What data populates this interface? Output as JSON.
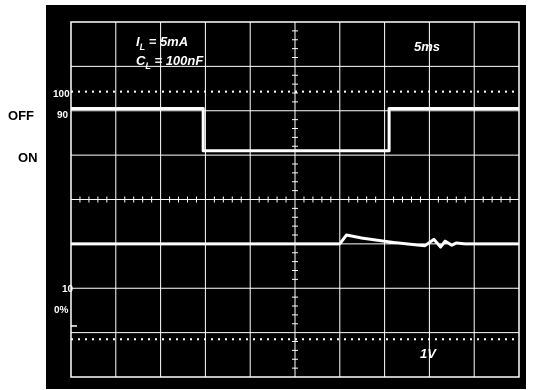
{
  "chart_data": {
    "type": "line",
    "title": "",
    "xlabel": "",
    "ylabel": "",
    "timebase": "5ms",
    "vertical_scale": "1V",
    "conditions": {
      "il": {
        "main": "I",
        "sub": "L",
        "rest": " = 5mA"
      },
      "cl": {
        "main": "C",
        "sub": "L",
        "rest": " = 100nF"
      }
    },
    "level_marks": {
      "top": "100",
      "upper": "90",
      "lower": "10",
      "bottom": "0%"
    },
    "side_labels": {
      "off": "OFF",
      "on": "ON"
    },
    "grid": true,
    "x_divisions": 10,
    "y_divisions": 8,
    "series": [
      {
        "channel": "upper",
        "x": [
          0,
          2.95,
          2.95,
          7.1,
          7.1,
          10
        ],
        "y": [
          6.05,
          6.05,
          5.1,
          5.1,
          6.05,
          6.05
        ]
      },
      {
        "channel": "lower",
        "x": [
          0,
          6.0,
          6.15,
          6.5,
          7.2,
          7.9,
          8.1,
          8.25,
          8.35,
          8.5,
          8.6,
          8.8,
          9.0,
          10
        ],
        "y": [
          3.0,
          3.0,
          3.2,
          3.13,
          3.03,
          2.96,
          3.1,
          2.93,
          3.06,
          2.97,
          3.02,
          3.0,
          3.0,
          3.0
        ]
      }
    ]
  },
  "figure_id": "00163-024"
}
